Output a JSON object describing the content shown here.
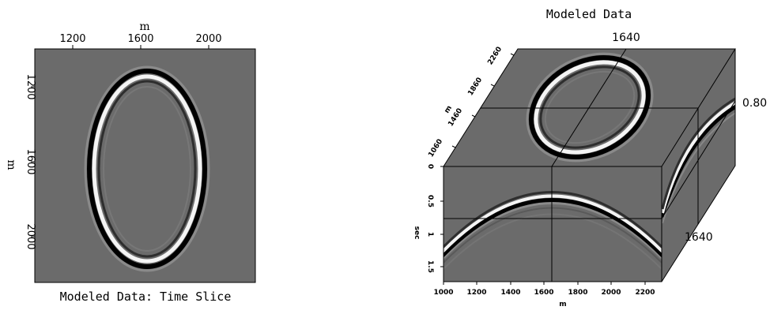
{
  "left_panel": {
    "title": "Modeled Data: Time Slice",
    "top_axis": {
      "label": "m",
      "ticks": [
        "1200",
        "1600",
        "2000"
      ]
    },
    "left_axis": {
      "label": "m",
      "ticks": [
        "1200",
        "1600",
        "2000"
      ]
    }
  },
  "right_panel": {
    "title": "Modeled Data",
    "bottom_axis": {
      "label": "m",
      "ticks": [
        "1000",
        "1200",
        "1400",
        "1600",
        "1800",
        "2000",
        "2200"
      ]
    },
    "time_axis": {
      "label": "sec",
      "ticks": [
        "0",
        "0.5",
        "1",
        "1.5"
      ]
    },
    "depth_axis": {
      "label": "m",
      "ticks": [
        "1060",
        "1460",
        "1860",
        "2260"
      ]
    },
    "markers": {
      "top": "1640",
      "right_upper": "0.80",
      "right_lower": "1640"
    }
  },
  "colors": {
    "background_gray": "#6b6b6b",
    "frame": "#000000"
  }
}
